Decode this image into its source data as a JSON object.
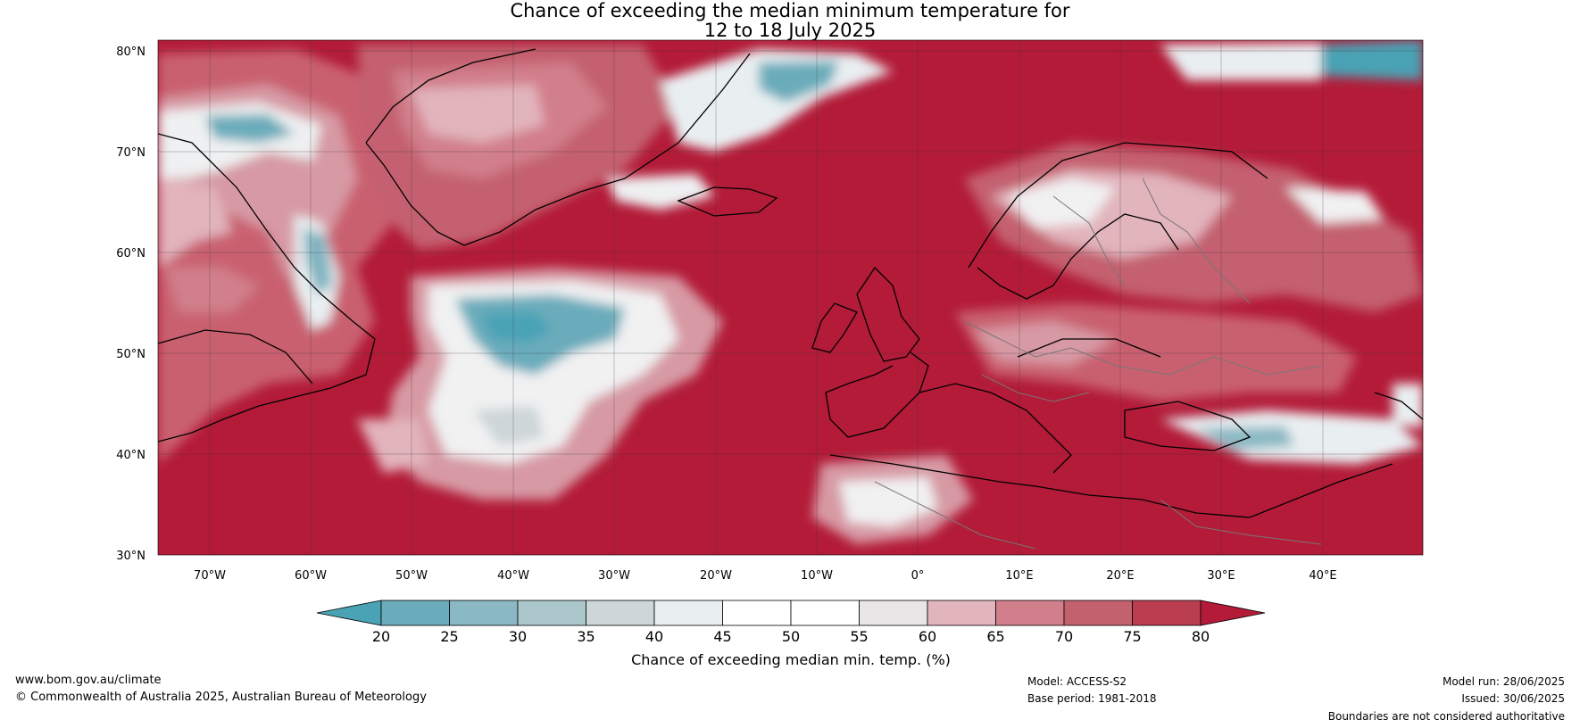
{
  "title": {
    "line1": "Chance of exceeding the median minimum temperature for",
    "line2": "12 to 18 July 2025"
  },
  "axes": {
    "lat_ticks": [
      "80°N",
      "70°N",
      "60°N",
      "50°N",
      "40°N",
      "30°N"
    ],
    "lon_ticks": [
      "70°W",
      "60°W",
      "50°W",
      "40°W",
      "30°W",
      "20°W",
      "10°W",
      "0°",
      "10°E",
      "20°E",
      "30°E",
      "40°E"
    ]
  },
  "colorbar": {
    "ticks": [
      "20",
      "25",
      "30",
      "35",
      "40",
      "45",
      "50",
      "55",
      "60",
      "65",
      "70",
      "75",
      "80"
    ],
    "colors": [
      "#4aa3b5",
      "#6aacbb",
      "#8ab8c4",
      "#abc7cc",
      "#cdd6d8",
      "#e9eff1",
      "#ffffff",
      "#ffffff",
      "#e9e6e8",
      "#e2b4bc",
      "#d17f8b",
      "#c4616f",
      "#bb3d50",
      "#b31b38"
    ],
    "label": "Chance of exceeding median min. temp. (%)"
  },
  "footer": {
    "website": "www.bom.gov.au/climate",
    "copyright": "© Commonwealth of Australia 2025, Australian Bureau of Meteorology",
    "model": "Model: ACCESS-S2",
    "base_period": "Base period: 1981-2018",
    "model_run": "Model run: 28/06/2025",
    "issued": "Issued: 30/06/2025",
    "boundaries": "Boundaries are not considered authoritative"
  }
}
